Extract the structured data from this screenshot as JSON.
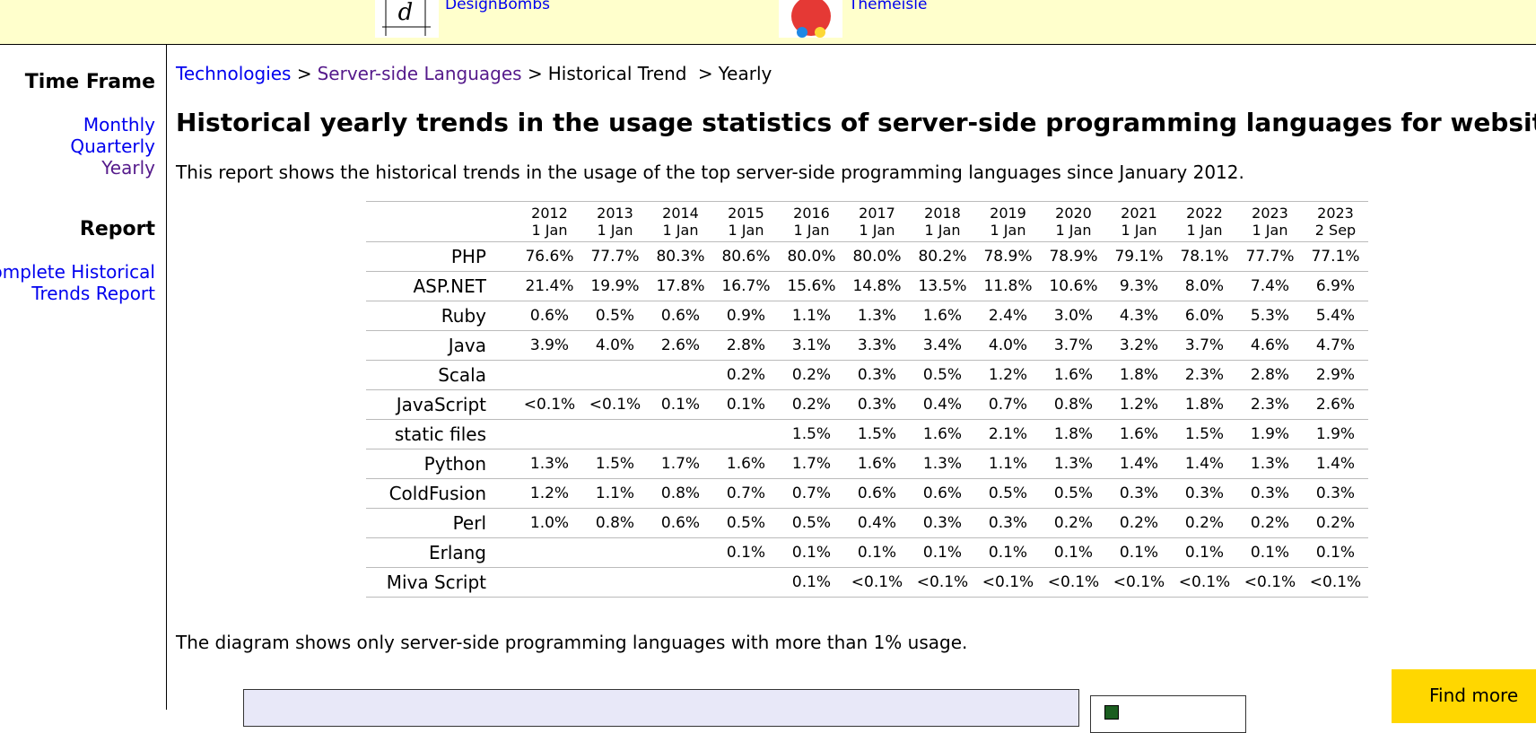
{
  "header": {
    "sponsors": [
      {
        "name": "DesignBombs"
      },
      {
        "name": "Themeisle"
      }
    ]
  },
  "sidebar": {
    "time_frame": {
      "title": "Time Frame",
      "links": [
        "Monthly",
        "Quarterly",
        "Yearly"
      ]
    },
    "report": {
      "title": "Report",
      "link": "Complete Historical Trends Report"
    }
  },
  "breadcrumb": {
    "items": [
      "Technologies",
      "Server-side Languages",
      "Historical Trend",
      "Yearly"
    ],
    "separator": ">"
  },
  "title": "Historical yearly trends in the usage statistics of server-side programming languages for websites",
  "description": "This report shows the historical trends in the usage of the top server-side programming languages since January 2012.",
  "table": {
    "columns": [
      {
        "year": "2012",
        "date": "1 Jan"
      },
      {
        "year": "2013",
        "date": "1 Jan"
      },
      {
        "year": "2014",
        "date": "1 Jan"
      },
      {
        "year": "2015",
        "date": "1 Jan"
      },
      {
        "year": "2016",
        "date": "1 Jan"
      },
      {
        "year": "2017",
        "date": "1 Jan"
      },
      {
        "year": "2018",
        "date": "1 Jan"
      },
      {
        "year": "2019",
        "date": "1 Jan"
      },
      {
        "year": "2020",
        "date": "1 Jan"
      },
      {
        "year": "2021",
        "date": "1 Jan"
      },
      {
        "year": "2022",
        "date": "1 Jan"
      },
      {
        "year": "2023",
        "date": "1 Jan"
      },
      {
        "year": "2023",
        "date": "2 Sep"
      }
    ],
    "rows": [
      {
        "label": "PHP",
        "cells": [
          "76.6%",
          "77.7%",
          "80.3%",
          "80.6%",
          "80.0%",
          "80.0%",
          "80.2%",
          "78.9%",
          "78.9%",
          "79.1%",
          "78.1%",
          "77.7%",
          "77.1%"
        ]
      },
      {
        "label": "ASP.NET",
        "cells": [
          "21.4%",
          "19.9%",
          "17.8%",
          "16.7%",
          "15.6%",
          "14.8%",
          "13.5%",
          "11.8%",
          "10.6%",
          "9.3%",
          "8.0%",
          "7.4%",
          "6.9%"
        ]
      },
      {
        "label": "Ruby",
        "cells": [
          "0.6%",
          "0.5%",
          "0.6%",
          "0.9%",
          "1.1%",
          "1.3%",
          "1.6%",
          "2.4%",
          "3.0%",
          "4.3%",
          "6.0%",
          "5.3%",
          "5.4%"
        ]
      },
      {
        "label": "Java",
        "cells": [
          "3.9%",
          "4.0%",
          "2.6%",
          "2.8%",
          "3.1%",
          "3.3%",
          "3.4%",
          "4.0%",
          "3.7%",
          "3.2%",
          "3.7%",
          "4.6%",
          "4.7%"
        ]
      },
      {
        "label": "Scala",
        "cells": [
          null,
          null,
          null,
          "0.2%",
          "0.2%",
          "0.3%",
          "0.5%",
          "1.2%",
          "1.6%",
          "1.8%",
          "2.3%",
          "2.8%",
          "2.9%"
        ]
      },
      {
        "label": "JavaScript",
        "cells": [
          "<0.1%",
          "<0.1%",
          "0.1%",
          "0.1%",
          "0.2%",
          "0.3%",
          "0.4%",
          "0.7%",
          "0.8%",
          "1.2%",
          "1.8%",
          "2.3%",
          "2.6%"
        ]
      },
      {
        "label": "static files",
        "cells": [
          null,
          null,
          null,
          null,
          "1.5%",
          "1.5%",
          "1.6%",
          "2.1%",
          "1.8%",
          "1.6%",
          "1.5%",
          "1.9%",
          "1.9%"
        ]
      },
      {
        "label": "Python",
        "cells": [
          "1.3%",
          "1.5%",
          "1.7%",
          "1.6%",
          "1.7%",
          "1.6%",
          "1.3%",
          "1.1%",
          "1.3%",
          "1.4%",
          "1.4%",
          "1.3%",
          "1.4%"
        ]
      },
      {
        "label": "ColdFusion",
        "cells": [
          "1.2%",
          "1.1%",
          "0.8%",
          "0.7%",
          "0.7%",
          "0.6%",
          "0.6%",
          "0.5%",
          "0.5%",
          "0.3%",
          "0.3%",
          "0.3%",
          "0.3%"
        ]
      },
      {
        "label": "Perl",
        "cells": [
          "1.0%",
          "0.8%",
          "0.6%",
          "0.5%",
          "0.5%",
          "0.4%",
          "0.3%",
          "0.3%",
          "0.2%",
          "0.2%",
          "0.2%",
          "0.2%",
          "0.2%"
        ]
      },
      {
        "label": "Erlang",
        "cells": [
          null,
          null,
          null,
          "0.1%",
          "0.1%",
          "0.1%",
          "0.1%",
          "0.1%",
          "0.1%",
          "0.1%",
          "0.1%",
          "0.1%",
          "0.1%"
        ]
      },
      {
        "label": "Miva Script",
        "cells": [
          null,
          null,
          null,
          null,
          "0.1%",
          "<0.1%",
          "<0.1%",
          "<0.1%",
          "<0.1%",
          "<0.1%",
          "<0.1%",
          "<0.1%",
          "<0.1%"
        ]
      }
    ]
  },
  "note": "The diagram shows only server-side programming languages with more than 1% usage.",
  "find_more": "Find more"
}
